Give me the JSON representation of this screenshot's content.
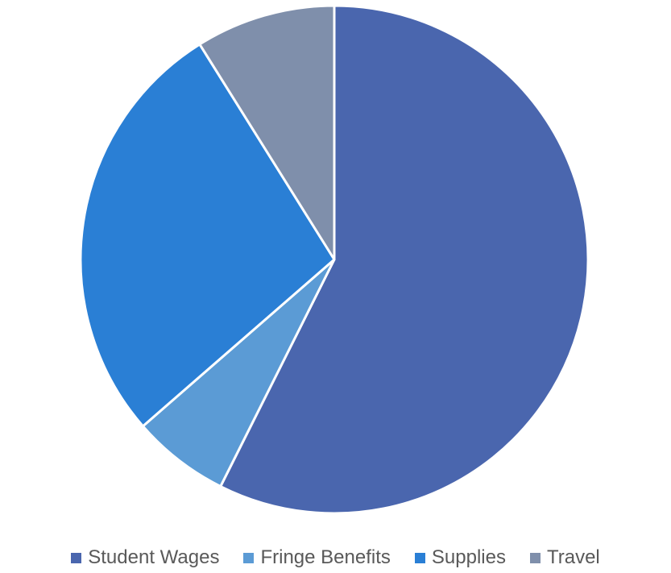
{
  "chart_data": {
    "type": "pie",
    "categories": [
      "Student Wages",
      "Fringe Benefits",
      "Supplies",
      "Travel"
    ],
    "values": [
      57.4,
      6.2,
      27.5,
      8.9
    ],
    "unit": "percent",
    "colors": [
      "#4a66ae",
      "#5b9bd5",
      "#2a7fd5",
      "#7f8fab"
    ],
    "legend_position": "bottom",
    "start_angle": "12 o'clock, clockwise",
    "title": ""
  },
  "legend": {
    "items": [
      {
        "label": "Student Wages",
        "color": "#4a66ae"
      },
      {
        "label": "Fringe Benefits",
        "color": "#5b9bd5"
      },
      {
        "label": "Supplies",
        "color": "#2a7fd5"
      },
      {
        "label": "Travel",
        "color": "#7f8fab"
      }
    ]
  }
}
